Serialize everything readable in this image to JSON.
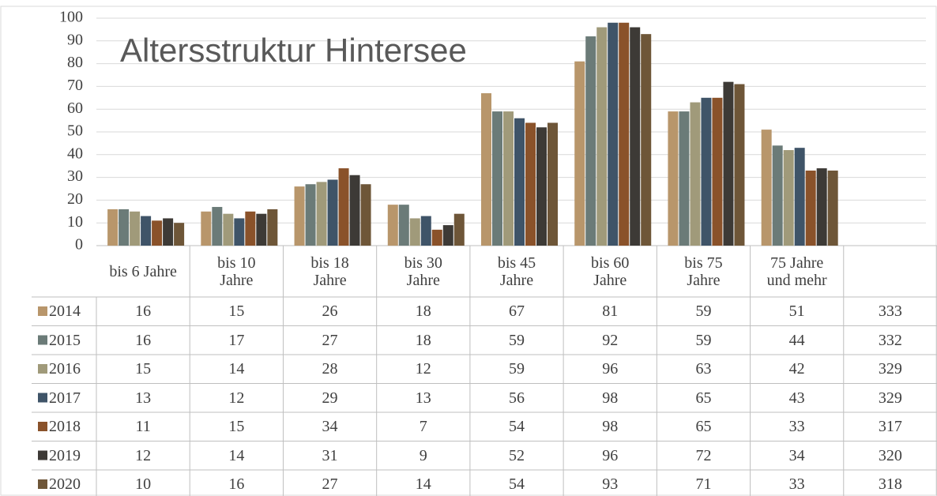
{
  "chart_data": {
    "type": "bar",
    "title": "Altersstruktur Hintersee",
    "categories": [
      "bis 6 Jahre",
      "bis 10\nJahre",
      "bis 18\nJahre",
      "bis 30\nJahre",
      "bis 45\nJahre",
      "bis 60\nJahre",
      "bis 75\nJahre",
      "75 Jahre\nund mehr"
    ],
    "series": [
      {
        "name": "2014",
        "color": "#b8966b",
        "values": [
          16,
          15,
          26,
          18,
          67,
          81,
          59,
          51
        ],
        "total": 333
      },
      {
        "name": "2015",
        "color": "#6b7b78",
        "values": [
          16,
          17,
          27,
          18,
          59,
          92,
          59,
          44
        ],
        "total": 332
      },
      {
        "name": "2016",
        "color": "#a09a7a",
        "values": [
          15,
          14,
          28,
          12,
          59,
          96,
          63,
          42
        ],
        "total": 329
      },
      {
        "name": "2017",
        "color": "#3f5468",
        "values": [
          13,
          12,
          29,
          13,
          56,
          98,
          65,
          43
        ],
        "total": 329
      },
      {
        "name": "2018",
        "color": "#8a522a",
        "values": [
          11,
          15,
          34,
          7,
          54,
          98,
          65,
          33
        ],
        "total": 317
      },
      {
        "name": "2019",
        "color": "#3d3a36",
        "values": [
          12,
          14,
          31,
          9,
          52,
          96,
          72,
          34
        ],
        "total": 320
      },
      {
        "name": "2020",
        "color": "#6e5638",
        "values": [
          10,
          16,
          27,
          14,
          54,
          93,
          71,
          33
        ],
        "total": 318
      }
    ],
    "ylim": [
      0,
      100
    ],
    "yticks": [
      0,
      10,
      20,
      30,
      40,
      50,
      60,
      70,
      80,
      90,
      100
    ],
    "grid": true
  }
}
